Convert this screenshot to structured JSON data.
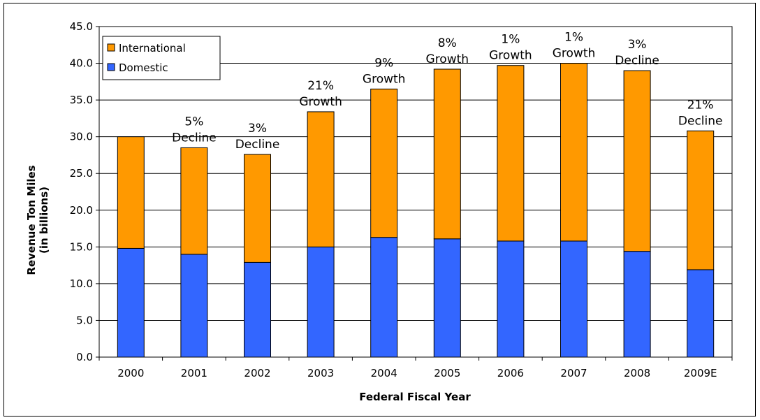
{
  "chart_data": {
    "type": "bar",
    "stacked": true,
    "xlabel": "Federal Fiscal Year",
    "ylabel": [
      "Revenue Ton Miles",
      "(in billions)"
    ],
    "ylim": [
      0,
      45
    ],
    "yticks": [
      "0.0",
      "5.0",
      "10.0",
      "15.0",
      "20.0",
      "25.0",
      "30.0",
      "35.0",
      "40.0",
      "45.0"
    ],
    "grid": true,
    "legend": "top-left",
    "categories": [
      "2000",
      "2001",
      "2002",
      "2003",
      "2004",
      "2005",
      "2006",
      "2007",
      "2008",
      "2009E"
    ],
    "series": [
      {
        "name": "Domestic",
        "color": "#3366ff",
        "values": [
          14.8,
          14.0,
          12.9,
          15.0,
          16.3,
          16.1,
          15.8,
          15.8,
          14.4,
          11.9
        ]
      },
      {
        "name": "International",
        "color": "#ff9900",
        "values": [
          15.2,
          14.5,
          14.7,
          18.4,
          20.2,
          23.1,
          23.9,
          24.2,
          24.6,
          18.9
        ]
      }
    ],
    "annotations": [
      null,
      [
        "5%",
        "Decline"
      ],
      [
        "3%",
        "Decline"
      ],
      [
        "21%",
        "Growth"
      ],
      [
        "9%",
        "Growth"
      ],
      [
        "8%",
        "Growth"
      ],
      [
        "1%",
        "Growth"
      ],
      [
        "1%",
        "Growth"
      ],
      [
        "3%",
        "Decline"
      ],
      [
        "21%",
        "Decline"
      ]
    ]
  }
}
